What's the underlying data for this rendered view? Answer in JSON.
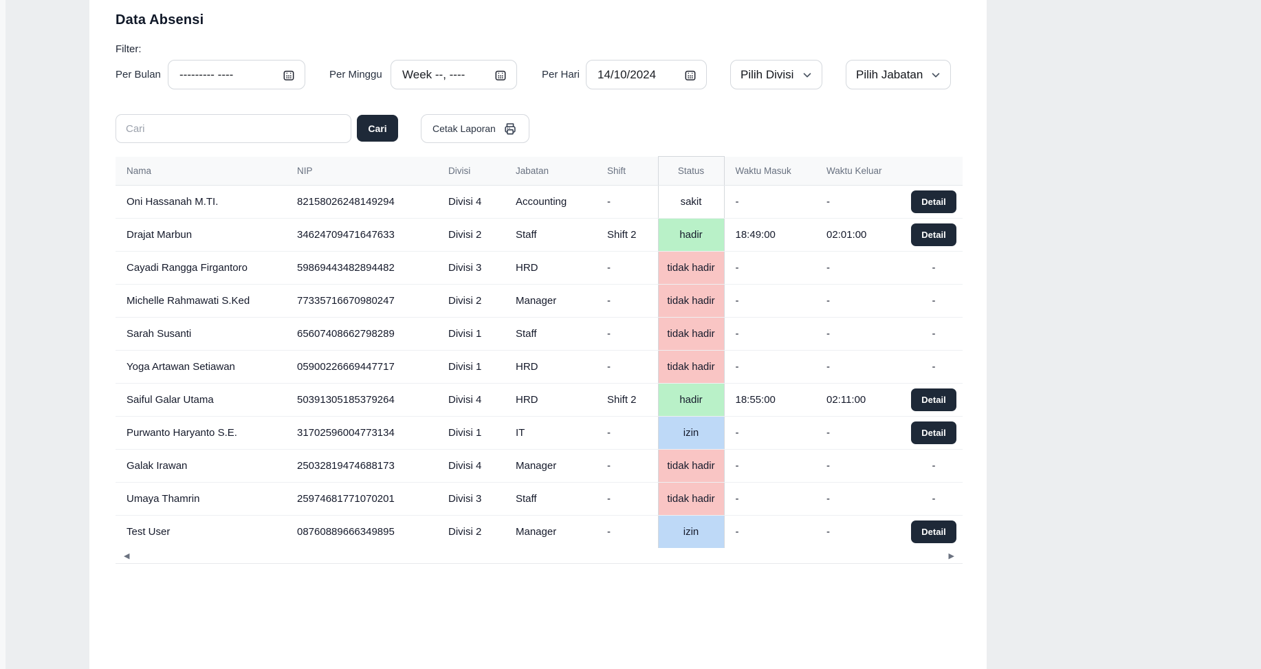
{
  "page": {
    "title": "Data Absensi",
    "filter_label": "Filter:"
  },
  "filters": {
    "per_bulan": {
      "label": "Per Bulan",
      "value": "--------- ----"
    },
    "per_minggu": {
      "label": "Per Minggu",
      "value": "Week --, ----"
    },
    "per_hari": {
      "label": "Per Hari",
      "value": "14/10/2024"
    },
    "divisi": {
      "selected": "Pilih Divisi"
    },
    "jabatan": {
      "selected": "Pilih Jabatan"
    }
  },
  "search": {
    "placeholder": "Cari",
    "submit_label": "Cari",
    "print_label": "Cetak Laporan"
  },
  "scrollbar": {
    "left_arrow": "◀",
    "right_arrow": "▶"
  },
  "colors": {
    "accent_dark": "#1e2938",
    "status_hadir": "#b9f1c8",
    "status_tidak_hadir": "#f9c5c4",
    "status_izin": "#bed9f7",
    "status_sakit": "transparent"
  },
  "table": {
    "headers": [
      "Nama",
      "NIP",
      "Divisi",
      "Jabatan",
      "Shift",
      "Status",
      "Waktu Masuk",
      "Waktu Keluar",
      ""
    ],
    "detail_label": "Detail",
    "empty_value": "-",
    "rows": [
      {
        "nama": "Oni Hassanah M.TI.",
        "nip": "82158026248149294",
        "divisi": "Divisi 4",
        "jabatan": "Accounting",
        "shift": "-",
        "status": "sakit",
        "masuk": "-",
        "keluar": "-",
        "detail": true
      },
      {
        "nama": "Drajat Marbun",
        "nip": "34624709471647633",
        "divisi": "Divisi 2",
        "jabatan": "Staff",
        "shift": "Shift 2",
        "status": "hadir",
        "masuk": "18:49:00",
        "keluar": "02:01:00",
        "detail": true
      },
      {
        "nama": "Cayadi Rangga Firgantoro",
        "nip": "59869443482894482",
        "divisi": "Divisi 3",
        "jabatan": "HRD",
        "shift": "-",
        "status": "tidak hadir",
        "masuk": "-",
        "keluar": "-",
        "detail": false
      },
      {
        "nama": "Michelle Rahmawati S.Ked",
        "nip": "77335716670980247",
        "divisi": "Divisi 2",
        "jabatan": "Manager",
        "shift": "-",
        "status": "tidak hadir",
        "masuk": "-",
        "keluar": "-",
        "detail": false
      },
      {
        "nama": "Sarah Susanti",
        "nip": "65607408662798289",
        "divisi": "Divisi 1",
        "jabatan": "Staff",
        "shift": "-",
        "status": "tidak hadir",
        "masuk": "-",
        "keluar": "-",
        "detail": false
      },
      {
        "nama": "Yoga Artawan Setiawan",
        "nip": "05900226669447717",
        "divisi": "Divisi 1",
        "jabatan": "HRD",
        "shift": "-",
        "status": "tidak hadir",
        "masuk": "-",
        "keluar": "-",
        "detail": false
      },
      {
        "nama": "Saiful Galar Utama",
        "nip": "50391305185379264",
        "divisi": "Divisi 4",
        "jabatan": "HRD",
        "shift": "Shift 2",
        "status": "hadir",
        "masuk": "18:55:00",
        "keluar": "02:11:00",
        "detail": true
      },
      {
        "nama": "Purwanto Haryanto S.E.",
        "nip": "31702596004773134",
        "divisi": "Divisi 1",
        "jabatan": "IT",
        "shift": "-",
        "status": "izin",
        "masuk": "-",
        "keluar": "-",
        "detail": true
      },
      {
        "nama": "Galak Irawan",
        "nip": "25032819474688173",
        "divisi": "Divisi 4",
        "jabatan": "Manager",
        "shift": "-",
        "status": "tidak hadir",
        "masuk": "-",
        "keluar": "-",
        "detail": false
      },
      {
        "nama": "Umaya Thamrin",
        "nip": "25974681771070201",
        "divisi": "Divisi 3",
        "jabatan": "Staff",
        "shift": "-",
        "status": "tidak hadir",
        "masuk": "-",
        "keluar": "-",
        "detail": false
      },
      {
        "nama": "Test User",
        "nip": "08760889666349895",
        "divisi": "Divisi 2",
        "jabatan": "Manager",
        "shift": "-",
        "status": "izin",
        "masuk": "-",
        "keluar": "-",
        "detail": true
      }
    ],
    "status_colors": {
      "hadir": "#b9f1c8",
      "tidak hadir": "#f9c5c4",
      "izin": "#bed9f7",
      "sakit": "transparent"
    }
  }
}
